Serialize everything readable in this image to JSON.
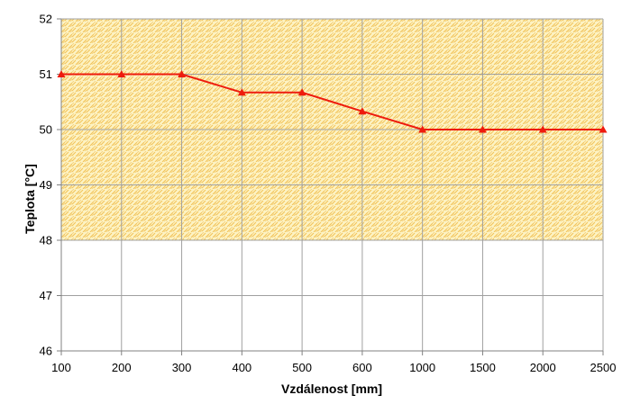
{
  "chart_data": {
    "type": "line",
    "categories": [
      "100",
      "200",
      "300",
      "400",
      "500",
      "600",
      "1000",
      "1500",
      "2000",
      "2500"
    ],
    "series": [
      {
        "values": [
          51,
          51,
          51,
          50.67,
          50.67,
          50.33,
          50,
          50,
          50,
          50
        ],
        "color": "#ee1c0e",
        "marker": "triangle"
      }
    ],
    "xlabel": "Vzdálenost  [mm]",
    "ylabel": "Teplota [°C]",
    "ylim": [
      46,
      52
    ],
    "yticks": [
      "46",
      "47",
      "48",
      "49",
      "50",
      "51",
      "52"
    ],
    "grid": true,
    "highlight_band": {
      "from": 48,
      "to": 52,
      "color": "#fdf3c4",
      "pattern_color": "#f2c45a"
    }
  }
}
